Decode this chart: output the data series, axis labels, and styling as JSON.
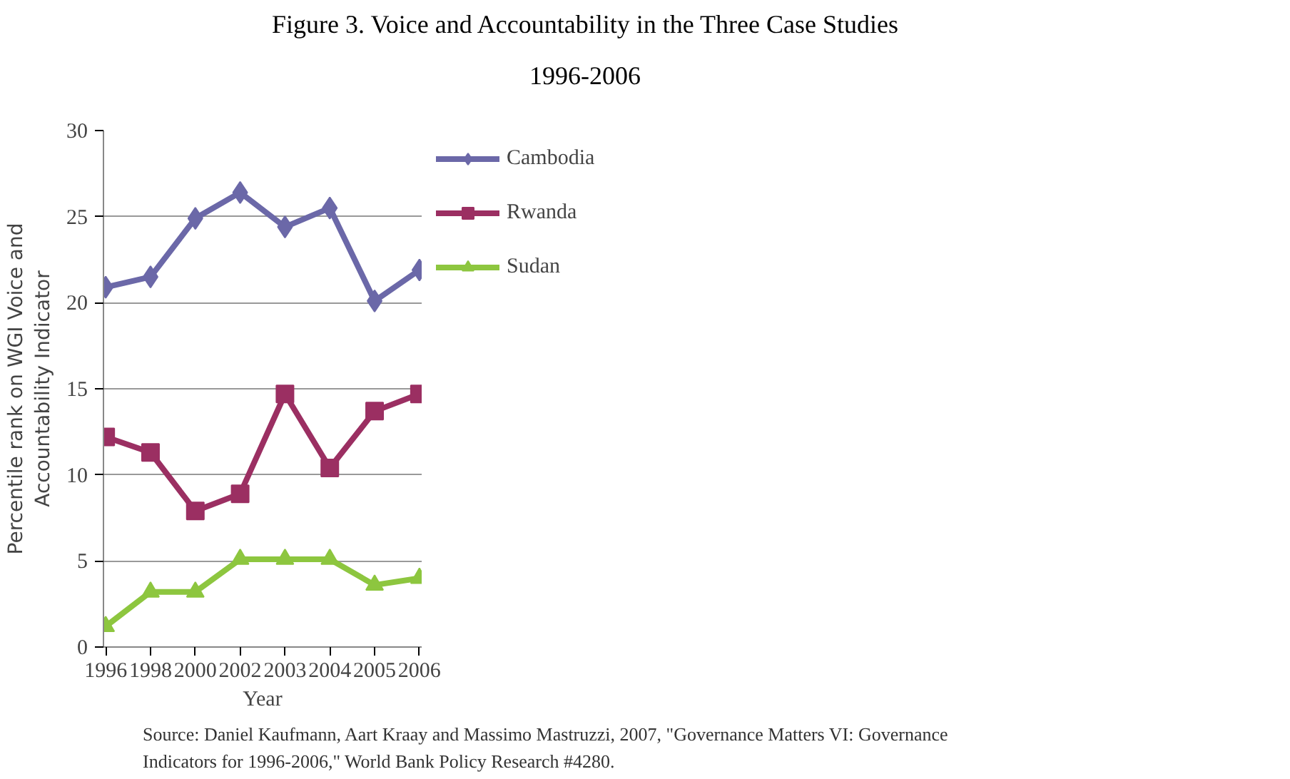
{
  "chart_data": {
    "type": "line",
    "title": "Figure 3. Voice and Accountability in the Three Case Studies",
    "subtitle": "1996-2006",
    "xlabel": "Year",
    "ylabel": "Percentile rank on WGI Voice and Accountability Indicator",
    "categories": [
      "1996",
      "1998",
      "2000",
      "2002",
      "2003",
      "2004",
      "2005",
      "2006"
    ],
    "series": [
      {
        "name": "Cambodia",
        "color": "#6b68a8",
        "marker": "diamond",
        "values": [
          20.9,
          21.5,
          24.9,
          26.4,
          24.4,
          25.5,
          20.1,
          21.9
        ]
      },
      {
        "name": "Rwanda",
        "color": "#9b2f62",
        "marker": "square",
        "values": [
          12.2,
          11.3,
          7.9,
          8.9,
          14.7,
          10.4,
          13.7,
          14.7
        ]
      },
      {
        "name": "Sudan",
        "color": "#8dc63f",
        "marker": "triangle",
        "values": [
          1.2,
          3.2,
          3.2,
          5.1,
          5.1,
          5.1,
          3.6,
          4.0
        ]
      }
    ],
    "ylim": [
      0,
      30
    ],
    "yticks": [
      0,
      5,
      10,
      15,
      20,
      25,
      30
    ],
    "grid": "y",
    "legend": "right",
    "line_style": "solid",
    "annotations": [
      "Source: Daniel Kaufmann, Aart Kraay and Massimo Mastruzzi, 2007, \"Governance Matters VI: Governance Indicators for 1996-2006,\" World Bank Policy Research #4280."
    ]
  }
}
